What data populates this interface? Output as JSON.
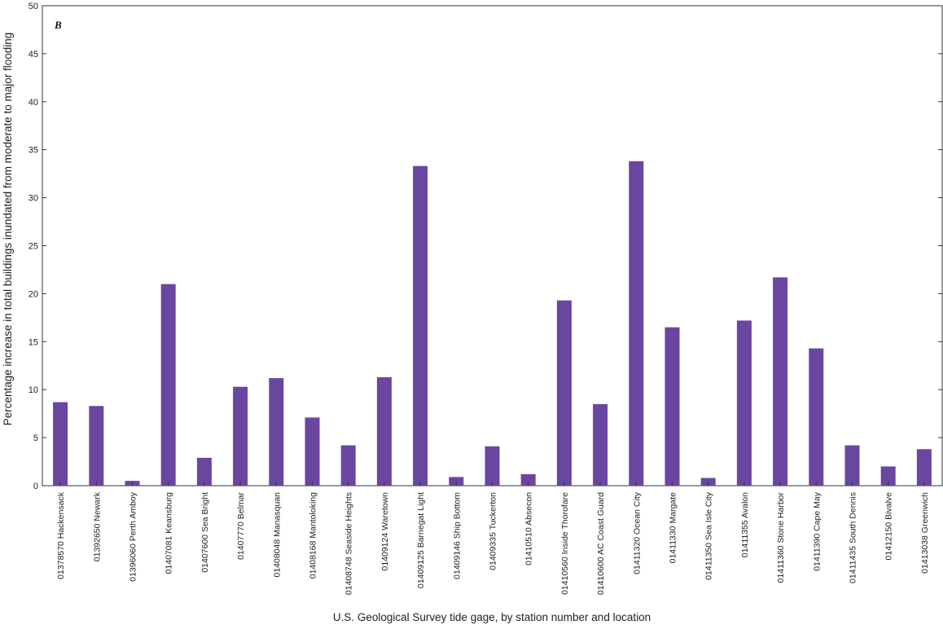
{
  "chart_data": {
    "type": "bar",
    "panel_label": "B",
    "xlabel": "U.S. Geological Survey tide gage, by station number and location",
    "ylabel": "Percentage increase in total buildings inundated from moderate to major flooding",
    "ylim": [
      0,
      50
    ],
    "yticks": [
      0,
      5,
      10,
      15,
      20,
      25,
      30,
      35,
      40,
      45,
      50
    ],
    "grid": false,
    "bar_color": "#6a46a0",
    "categories": [
      "01378570 Hackensack",
      "01392650 Newark",
      "01396060 Perth Amboy",
      "01407081 Keansburg",
      "01407600 Sea Bright",
      "01407770 Belmar",
      "01408048 Manasquan",
      "01408168 Mantoloking",
      "01408748 Seaside Heights",
      "01409124 Waretown",
      "01409125 Barnegat Light",
      "01409146 Ship Bottom",
      "01409335 Tuckerton",
      "01410510 Absecon",
      "01410560 Inside Thorofare",
      "01410600 AC Coast Guard",
      "01411320 Ocean City",
      "01411330 Margate",
      "01411350 Sea Isle City",
      "01411355 Avalon",
      "01411360 Stone Harbor",
      "01411390 Cape May",
      "01411435 South Dennis",
      "01412150 Bivalve",
      "01413038 Greenwich"
    ],
    "values": [
      8.7,
      8.3,
      0.5,
      21.0,
      2.9,
      10.3,
      11.2,
      7.1,
      4.2,
      11.3,
      33.3,
      0.9,
      4.1,
      1.2,
      19.3,
      8.5,
      33.8,
      16.5,
      0.8,
      17.2,
      21.7,
      14.3,
      4.2,
      2.0,
      3.8
    ]
  }
}
